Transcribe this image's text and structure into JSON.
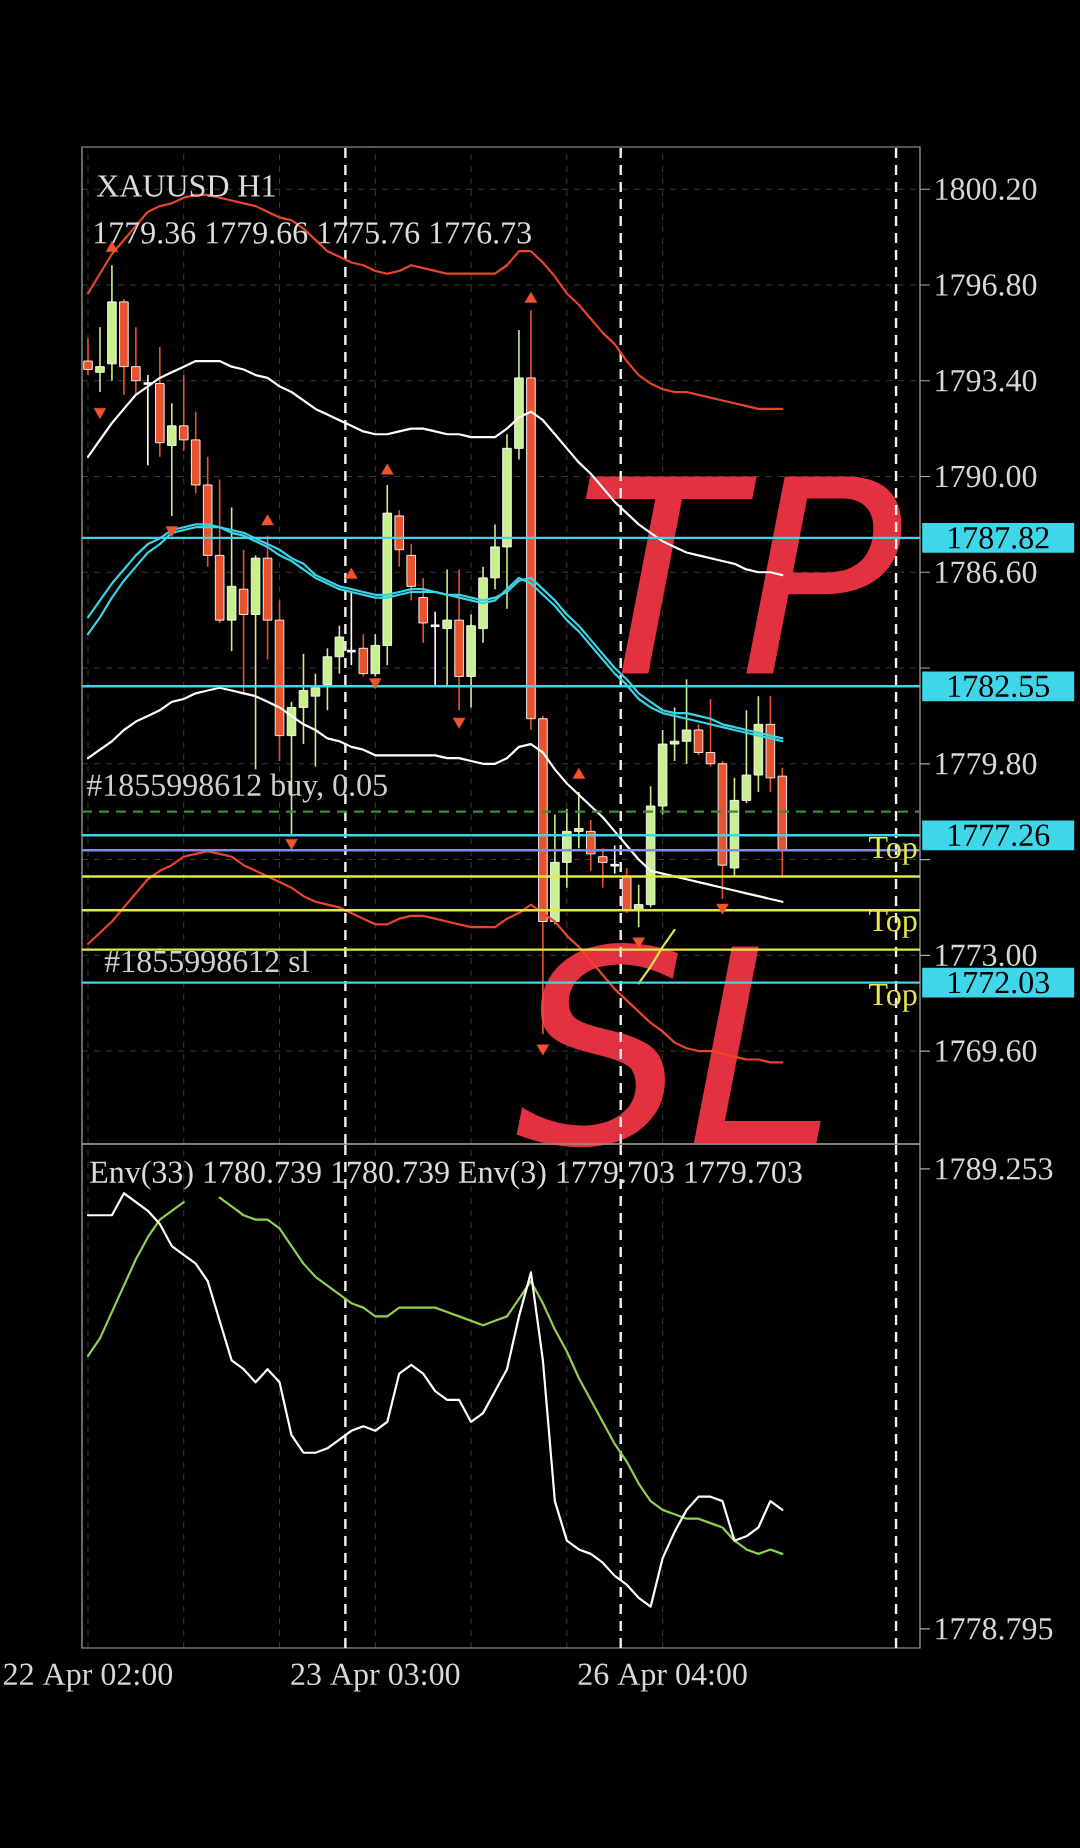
{
  "chart_data": [
    {
      "type": "candlestick",
      "title": "XAUUSD H1",
      "subtitle": "1779.36 1779.66 1775.76 1776.73",
      "categories": [
        null,
        null,
        null,
        null,
        null,
        null,
        null,
        null,
        null,
        null,
        null,
        null,
        null,
        null,
        null,
        null,
        null,
        null,
        null,
        null,
        null,
        null,
        null,
        null,
        null,
        null,
        null,
        null,
        null,
        null,
        null,
        null,
        null,
        null,
        null,
        null,
        null,
        null,
        null,
        null,
        null,
        null,
        null,
        null,
        null,
        null,
        null,
        null,
        null,
        null,
        null,
        null,
        null,
        null,
        null,
        null,
        null,
        null,
        null,
        null,
        null,
        null,
        null,
        null,
        null,
        null,
        null,
        null,
        null,
        null
      ],
      "ohlc": [
        [
          1794.1,
          1794.9,
          1793.6,
          1793.8
        ],
        [
          1793.7,
          1795.3,
          1793.0,
          1793.9
        ],
        [
          1794.0,
          1797.5,
          1793.4,
          1796.2
        ],
        [
          1796.2,
          1796.3,
          1792.9,
          1793.9
        ],
        [
          1793.9,
          1795.3,
          1792.9,
          1793.4
        ],
        [
          1793.3,
          1793.6,
          1790.4,
          1793.3
        ],
        [
          1793.3,
          1794.6,
          1790.7,
          1791.2
        ],
        [
          1791.1,
          1792.6,
          1788.6,
          1791.8
        ],
        [
          1791.8,
          1793.6,
          1790.9,
          1791.3
        ],
        [
          1791.3,
          1792.3,
          1789.4,
          1789.7
        ],
        [
          1789.7,
          1790.7,
          1786.8,
          1787.2
        ],
        [
          1787.2,
          1789.9,
          1784.8,
          1784.9
        ],
        [
          1784.9,
          1788.9,
          1783.8,
          1786.1
        ],
        [
          1786.0,
          1787.4,
          1782.3,
          1785.1
        ],
        [
          1785.1,
          1787.2,
          1779.6,
          1787.1
        ],
        [
          1787.1,
          1787.9,
          1783.5,
          1784.9
        ],
        [
          1784.9,
          1785.6,
          1779.9,
          1780.8
        ],
        [
          1780.8,
          1782.0,
          1777.3,
          1781.8
        ],
        [
          1781.8,
          1783.7,
          1780.5,
          1782.4
        ],
        [
          1782.2,
          1783.0,
          1779.7,
          1782.5
        ],
        [
          1782.6,
          1783.9,
          1781.7,
          1783.6
        ],
        [
          1783.6,
          1784.7,
          1783.0,
          1784.3
        ],
        [
          1783.8,
          1785.9,
          1783.3,
          1783.8
        ],
        [
          1783.9,
          1784.4,
          1782.9,
          1783.0
        ],
        [
          1783.0,
          1784.4,
          1782.9,
          1784.0
        ],
        [
          1784.0,
          1789.7,
          1783.3,
          1788.7
        ],
        [
          1788.6,
          1788.8,
          1786.8,
          1787.4
        ],
        [
          1787.2,
          1787.6,
          1785.6,
          1786.1
        ],
        [
          1785.7,
          1786.4,
          1784.1,
          1784.8
        ],
        [
          1784.7,
          1785.2,
          1782.6,
          1784.7
        ],
        [
          1784.6,
          1786.7,
          1782.6,
          1784.9
        ],
        [
          1784.9,
          1786.7,
          1781.7,
          1782.9
        ],
        [
          1782.9,
          1785.1,
          1781.8,
          1784.7
        ],
        [
          1784.6,
          1786.8,
          1784.1,
          1786.4
        ],
        [
          1786.4,
          1788.3,
          1786.0,
          1787.5
        ],
        [
          1787.5,
          1791.5,
          1785.3,
          1791.0
        ],
        [
          1791.0,
          1795.2,
          1790.6,
          1793.5
        ],
        [
          1793.5,
          1795.9,
          1781.0,
          1781.4
        ],
        [
          1781.4,
          1781.5,
          1770.2,
          1774.2
        ],
        [
          1774.2,
          1778.0,
          1774.1,
          1776.3
        ],
        [
          1776.3,
          1778.2,
          1775.4,
          1777.4
        ],
        [
          1777.4,
          1778.8,
          1776.8,
          1777.5
        ],
        [
          1777.4,
          1777.8,
          1776.0,
          1776.6
        ],
        [
          1776.5,
          1776.8,
          1775.4,
          1776.3
        ],
        [
          1776.2,
          1776.9,
          1775.9,
          1776.2
        ],
        [
          1775.8,
          1776.1,
          1774.5,
          1774.6
        ],
        [
          1774.6,
          1775.5,
          1774.0,
          1774.8
        ],
        [
          1774.8,
          1779.0,
          1774.7,
          1778.3
        ],
        [
          1778.3,
          1781.0,
          1778.0,
          1780.5
        ],
        [
          1780.5,
          1781.8,
          1779.9,
          1780.6
        ],
        [
          1780.6,
          1782.8,
          1779.8,
          1781.0
        ],
        [
          1781.0,
          1781.2,
          1780.1,
          1780.2
        ],
        [
          1780.2,
          1782.1,
          1779.7,
          1779.8
        ],
        [
          1779.8,
          1779.9,
          1775.0,
          1776.2
        ],
        [
          1776.1,
          1779.3,
          1775.8,
          1778.5
        ],
        [
          1778.5,
          1781.7,
          1778.4,
          1779.4
        ],
        [
          1779.4,
          1782.2,
          1778.8,
          1781.2
        ],
        [
          1781.2,
          1782.2,
          1778.8,
          1779.3
        ],
        [
          1779.36,
          1779.66,
          1775.76,
          1776.73
        ],
        null,
        null,
        null,
        null,
        null,
        null,
        null,
        null,
        null,
        null,
        null
      ],
      "colors": [
        "#e8532f",
        "#c8f08e",
        "#c8f08e",
        "#e8532f",
        "#e8532f",
        "#ffffff",
        "#e8532f",
        "#c8f08e",
        "#e8532f",
        "#e8532f",
        "#e8532f",
        "#e8532f",
        "#c8f08e",
        "#e8532f",
        "#c8f08e",
        "#e8532f",
        "#e8532f",
        "#c8f08e",
        "#c8f08e",
        "#c8f08e",
        "#c8f08e",
        "#c8f08e",
        "#ffffff",
        "#e8532f",
        "#c8f08e",
        "#c8f08e",
        "#e8532f",
        "#e8532f",
        "#e8532f",
        "#ffffff",
        "#c8f08e",
        "#e8532f",
        "#c8f08e",
        "#c8f08e",
        "#c8f08e",
        "#c8f08e",
        "#c8f08e",
        "#e8532f",
        "#e8532f",
        "#c8f08e",
        "#c8f08e",
        "#c8f08e",
        "#e8532f",
        "#e8532f",
        "#ffffff",
        "#e8532f",
        "#c8f08e",
        "#c8f08e",
        "#c8f08e",
        "#c8f08e",
        "#c8f08e",
        "#e8532f",
        "#e8532f",
        "#e8532f",
        "#c8f08e",
        "#c8f08e",
        "#c8f08e",
        "#e8532f",
        "#e8532f",
        null,
        null,
        null,
        null,
        null,
        null,
        null,
        null,
        null,
        null,
        null
      ],
      "series": [
        {
          "type": "line",
          "color": "#e8452c",
          "values": [
            1796.5,
            1797.2,
            1797.9,
            1798.4,
            1798.9,
            1799.4,
            1799.6,
            1799.7,
            1799.9,
            1800.0,
            1800.0,
            1799.9,
            1799.8,
            1799.7,
            1799.6,
            1799.4,
            1799.2,
            1799.1,
            1798.8,
            1798.4,
            1798.0,
            1797.8,
            1797.6,
            1797.5,
            1797.3,
            1797.2,
            1797.3,
            1797.5,
            1797.4,
            1797.3,
            1797.2,
            1797.2,
            1797.2,
            1797.2,
            1797.2,
            1797.5,
            1798.0,
            1798.0,
            1797.6,
            1797.1,
            1796.5,
            1796.1,
            1795.6,
            1795.1,
            1794.7,
            1794.1,
            1793.6,
            1793.3,
            1793.1,
            1793.0,
            1793.0,
            1792.9,
            1792.8,
            1792.7,
            1792.6,
            1792.5,
            1792.4,
            1792.4,
            1792.4,
            null,
            null,
            null,
            null,
            null,
            null,
            null,
            null,
            null,
            null,
            null
          ]
        },
        {
          "type": "line",
          "color": "#e8452c",
          "values": [
            1773.4,
            1773.8,
            1774.2,
            1774.7,
            1775.2,
            1775.7,
            1776.0,
            1776.2,
            1776.5,
            1776.6,
            1776.7,
            1776.6,
            1776.5,
            1776.2,
            1776.0,
            1775.8,
            1775.6,
            1775.4,
            1775.1,
            1774.9,
            1774.8,
            1774.7,
            1774.5,
            1774.3,
            1774.1,
            1774.1,
            1774.3,
            1774.4,
            1774.4,
            1774.3,
            1774.2,
            1774.1,
            1774.0,
            1774.0,
            1774.0,
            1774.3,
            1774.5,
            1774.8,
            1774.5,
            1774.2,
            1773.7,
            1773.3,
            1772.8,
            1772.3,
            1771.8,
            1771.4,
            1771.0,
            1770.6,
            1770.3,
            1769.9,
            1769.7,
            1769.6,
            1769.6,
            1769.5,
            1769.4,
            1769.3,
            1769.3,
            1769.2,
            1769.2,
            null,
            null,
            null,
            null,
            null,
            null,
            null,
            null,
            null,
            null,
            null
          ]
        },
        {
          "type": "line",
          "color": "#ffffff",
          "values": [
            1790.7,
            1791.3,
            1791.9,
            1792.4,
            1792.9,
            1793.2,
            1793.5,
            1793.7,
            1793.9,
            1794.1,
            1794.1,
            1794.1,
            1793.9,
            1793.8,
            1793.6,
            1793.5,
            1793.2,
            1793.0,
            1792.7,
            1792.4,
            1792.2,
            1792.0,
            1791.8,
            1791.6,
            1791.5,
            1791.5,
            1791.6,
            1791.7,
            1791.7,
            1791.6,
            1791.5,
            1791.5,
            1791.4,
            1791.4,
            1791.4,
            1791.7,
            1792.1,
            1792.3,
            1792.0,
            1791.5,
            1791.0,
            1790.5,
            1790.1,
            1789.6,
            1789.1,
            1788.7,
            1788.3,
            1788.0,
            1787.7,
            1787.5,
            1787.3,
            1787.2,
            1787.1,
            1787.0,
            1786.9,
            1786.7,
            1786.6,
            1786.6,
            1786.5,
            null,
            null,
            null,
            null,
            null,
            null,
            null,
            null,
            null,
            null,
            null
          ]
        },
        {
          "type": "line",
          "color": "#ffffff",
          "values": [
            1780.0,
            1780.3,
            1780.6,
            1781.0,
            1781.3,
            1781.5,
            1781.7,
            1782.0,
            1782.1,
            1782.3,
            1782.4,
            1782.5,
            1782.4,
            1782.3,
            1782.2,
            1782.0,
            1781.8,
            1781.5,
            1781.2,
            1781.0,
            1780.7,
            1780.6,
            1780.4,
            1780.3,
            1780.1,
            1780.1,
            1780.1,
            1780.1,
            1780.1,
            1780.1,
            1780.0,
            1780.0,
            1779.9,
            1779.8,
            1779.8,
            1780.0,
            1780.4,
            1780.5,
            1780.2,
            1779.6,
            1779.1,
            1778.7,
            1778.3,
            1777.9,
            1777.4,
            1776.9,
            1776.4,
            1776.0,
            1775.9,
            1775.8,
            1775.7,
            1775.6,
            1775.5,
            1775.4,
            1775.3,
            1775.2,
            1775.1,
            1775.0,
            1774.9,
            null,
            null,
            null,
            null,
            null,
            null,
            null,
            null,
            null,
            null,
            null
          ]
        },
        {
          "type": "line",
          "color": "#3ad3e6",
          "values": [
            1785.0,
            1785.6,
            1786.2,
            1786.7,
            1787.2,
            1787.6,
            1787.8,
            1788.1,
            1788.2,
            1788.3,
            1788.3,
            1788.2,
            1788.1,
            1788.0,
            1787.8,
            1787.6,
            1787.4,
            1787.1,
            1786.9,
            1786.5,
            1786.3,
            1786.1,
            1786.0,
            1785.9,
            1785.8,
            1785.8,
            1785.9,
            1786.0,
            1786.0,
            1785.9,
            1785.8,
            1785.8,
            1785.7,
            1785.6,
            1785.7,
            1785.9,
            1786.3,
            1786.4,
            1786.0,
            1785.6,
            1785.1,
            1784.7,
            1784.2,
            1783.7,
            1783.2,
            1782.8,
            1782.3,
            1782.0,
            1781.7,
            1781.6,
            1781.6,
            1781.5,
            1781.4,
            1781.2,
            1781.1,
            1781.0,
            1780.9,
            1780.8,
            1780.7,
            null,
            null,
            null,
            null,
            null,
            null,
            null,
            null,
            null,
            null,
            null
          ]
        },
        {
          "type": "line",
          "color": "#3ad3e6",
          "values": [
            1784.4,
            1785.0,
            1785.7,
            1786.3,
            1786.8,
            1787.3,
            1787.6,
            1788.0,
            1788.1,
            1788.2,
            1788.2,
            1788.2,
            1788.0,
            1787.9,
            1787.7,
            1787.5,
            1787.2,
            1787.0,
            1786.7,
            1786.4,
            1786.2,
            1786.0,
            1785.9,
            1785.8,
            1785.7,
            1785.7,
            1785.8,
            1785.9,
            1785.9,
            1785.9,
            1785.8,
            1785.7,
            1785.6,
            1785.5,
            1785.6,
            1786.0,
            1786.4,
            1786.2,
            1785.8,
            1785.4,
            1784.9,
            1784.5,
            1784.0,
            1783.5,
            1783.0,
            1782.6,
            1782.1,
            1781.8,
            1781.6,
            1781.5,
            1781.4,
            1781.3,
            1781.2,
            1781.1,
            1781.0,
            1780.9,
            1780.8,
            1780.7,
            1780.6,
            null,
            null,
            null,
            null,
            null,
            null,
            null,
            null,
            null,
            null,
            null
          ]
        },
        {
          "type": "line",
          "color": "#d6e64a",
          "values": [
            null,
            null,
            null,
            null,
            null,
            null,
            null,
            null,
            null,
            null,
            null,
            null,
            null,
            null,
            null,
            null,
            null,
            null,
            null,
            null,
            null,
            null,
            null,
            null,
            null,
            null,
            null,
            null,
            null,
            null,
            null,
            null,
            null,
            null,
            null,
            null,
            null,
            null,
            null,
            null,
            null,
            null,
            null,
            null,
            null,
            null,
            1772.0,
            1772.6,
            1773.3,
            1773.9,
            null,
            null,
            null,
            null,
            null,
            null,
            null,
            null,
            null,
            null,
            null,
            null,
            null,
            null,
            null,
            null,
            null,
            null,
            null,
            null
          ]
        },
        {
          "type": "scatter",
          "color": "#f0542d",
          "marker": "triangle",
          "values": [
            null,
            null,
            1798.1,
            null,
            null,
            null,
            null,
            null,
            null,
            null,
            null,
            null,
            null,
            null,
            null,
            1788.4,
            null,
            null,
            null,
            null,
            null,
            null,
            1786.5,
            null,
            null,
            1790.2,
            null,
            null,
            null,
            null,
            null,
            null,
            null,
            null,
            null,
            null,
            null,
            1796.3,
            null,
            null,
            null,
            1779.4,
            null,
            null,
            null,
            null,
            null,
            null,
            null,
            null,
            null,
            null,
            null,
            null,
            null,
            null,
            null,
            null,
            null,
            null,
            null,
            null,
            null,
            null,
            null,
            null,
            null,
            null,
            null,
            null
          ]
        },
        {
          "type": "scatter",
          "color": "#f0542d",
          "marker": "triangle",
          "values": [
            null,
            1792.3,
            null,
            null,
            null,
            null,
            null,
            1788.1,
            null,
            null,
            null,
            null,
            null,
            null,
            null,
            null,
            null,
            1777.0,
            null,
            null,
            null,
            null,
            null,
            null,
            1782.7,
            null,
            null,
            null,
            null,
            null,
            null,
            1781.3,
            null,
            null,
            null,
            null,
            null,
            null,
            1769.7,
            null,
            null,
            null,
            null,
            null,
            null,
            null,
            1773.5,
            null,
            null,
            null,
            null,
            null,
            null,
            1774.7,
            null,
            null,
            null,
            null,
            null,
            null,
            null,
            null,
            null,
            null,
            null,
            null,
            null,
            null,
            null,
            null
          ]
        }
      ],
      "ylim": [
        1766.3,
        1801.7
      ],
      "yticks": [
        {
          "value": 1800.2,
          "label": "1800.20"
        },
        {
          "value": 1796.8,
          "label": "1796.80"
        },
        {
          "value": 1793.4,
          "label": "1793.40"
        },
        {
          "value": 1790,
          "label": "1790.00"
        },
        {
          "value": 1786.6,
          "label": "1786.60"
        },
        {
          "value": 1783.2,
          "label": null
        },
        {
          "value": 1779.8,
          "label": "1779.80"
        },
        {
          "value": 1776.4,
          "label": null
        },
        {
          "value": 1773,
          "label": "1773.00"
        },
        {
          "value": 1769.6,
          "label": "1769.60"
        }
      ],
      "grid": true,
      "tick_labels": "y",
      "ref_lines": [
        {
          "axis": "y",
          "value": 1787.82,
          "label": "1787.82",
          "color": "#3fd6ea"
        },
        {
          "axis": "y",
          "value": 1782.55,
          "label": "1782.55",
          "color": "#3fd6ea"
        },
        {
          "axis": "y",
          "value": 1777.26,
          "label": "1777.26",
          "color": "#3fd6ea"
        },
        {
          "axis": "y",
          "value": 1772.03,
          "label": "1772.03",
          "color": "#3fd6ea"
        },
        {
          "axis": "y",
          "value": 1776.73,
          "color": "#7d8fdc"
        },
        {
          "axis": "y",
          "value": 1778.1,
          "color": "#3d8a3d",
          "line_style": "dashed"
        },
        {
          "axis": "y",
          "value": 1775.8,
          "color": "#e3e64c"
        },
        {
          "axis": "y",
          "value": 1774.6,
          "color": "#e3e64c"
        },
        {
          "axis": "y",
          "value": 1773.2,
          "color": "#e3e64c"
        }
      ],
      "annotations": [
        "#1855998612 buy, 0.05",
        "#1855998612 sl",
        "Top",
        "Top",
        "Top",
        "TP",
        "SL"
      ]
    },
    {
      "type": "line",
      "title": "Env(33) 1780.739 1780.739 Env(3) 1779.703 1779.703",
      "categories": [
        "22 Apr 02:00",
        null,
        null,
        null,
        null,
        null,
        null,
        null,
        null,
        null,
        null,
        null,
        null,
        null,
        null,
        null,
        null,
        null,
        null,
        null,
        null,
        null,
        null,
        null,
        "23 Apr 03:00",
        null,
        null,
        null,
        null,
        null,
        null,
        null,
        null,
        null,
        null,
        null,
        null,
        null,
        null,
        null,
        null,
        null,
        null,
        null,
        null,
        null,
        null,
        null,
        "26 Apr 04:00",
        null,
        null,
        null,
        null,
        null,
        null,
        null,
        null,
        null,
        null,
        null,
        null,
        null,
        null,
        null,
        null,
        null,
        null,
        null,
        null,
        null
      ],
      "series": [
        {
          "color": "#8fd14f",
          "values": [
            1785.0,
            1785.4,
            1786.0,
            1786.6,
            1787.2,
            1787.7,
            1788.1,
            1788.3,
            1788.5,
            null,
            null,
            1788.6,
            1788.4,
            1788.2,
            1788.1,
            1788.1,
            1787.9,
            1787.5,
            1787.1,
            1786.8,
            1786.6,
            1786.4,
            1786.2,
            1786.1,
            1785.9,
            1785.9,
            1786.1,
            1786.1,
            1786.1,
            1786.1,
            1786.0,
            1785.9,
            1785.8,
            1785.7,
            1785.8,
            1785.9,
            1786.3,
            1786.7,
            1786.2,
            1785.6,
            1785.1,
            1784.5,
            1784.0,
            1783.5,
            1783.0,
            1782.6,
            1782.1,
            1781.7,
            1781.5,
            1781.4,
            1781.3,
            1781.3,
            1781.2,
            1781.1,
            1780.8,
            1780.6,
            1780.5,
            1780.6,
            1780.5,
            null,
            null,
            null,
            null,
            null,
            null,
            null,
            null,
            null,
            null,
            null
          ]
        },
        {
          "color": "#ffffff",
          "values": [
            1788.2,
            1788.2,
            1788.2,
            1788.7,
            1788.5,
            1788.3,
            1788.0,
            1787.5,
            1787.3,
            1787.1,
            1786.7,
            1785.8,
            1784.9,
            1784.7,
            1784.4,
            1784.7,
            1784.4,
            1783.2,
            1782.8,
            1782.8,
            1782.9,
            1783.1,
            1783.3,
            1783.4,
            1783.3,
            1783.5,
            1784.6,
            1784.8,
            1784.6,
            1784.2,
            1784.0,
            1784.0,
            1783.5,
            1783.7,
            1784.2,
            1784.7,
            1785.9,
            1786.9,
            1784.9,
            1781.7,
            1780.8,
            1780.6,
            1780.5,
            1780.3,
            1780.0,
            1779.8,
            1779.5,
            1779.3,
            1780.4,
            1781.0,
            1781.5,
            1781.8,
            1781.8,
            1781.7,
            1780.8,
            1780.9,
            1781.1,
            1781.7,
            1781.5,
            null,
            null,
            null,
            null,
            null,
            null,
            null,
            null,
            null,
            null,
            null
          ]
        }
      ],
      "ylim": [
        1778.36,
        1789.82
      ],
      "yticks": [
        1789.253,
        1778.795
      ],
      "grid": "x"
    }
  ]
}
